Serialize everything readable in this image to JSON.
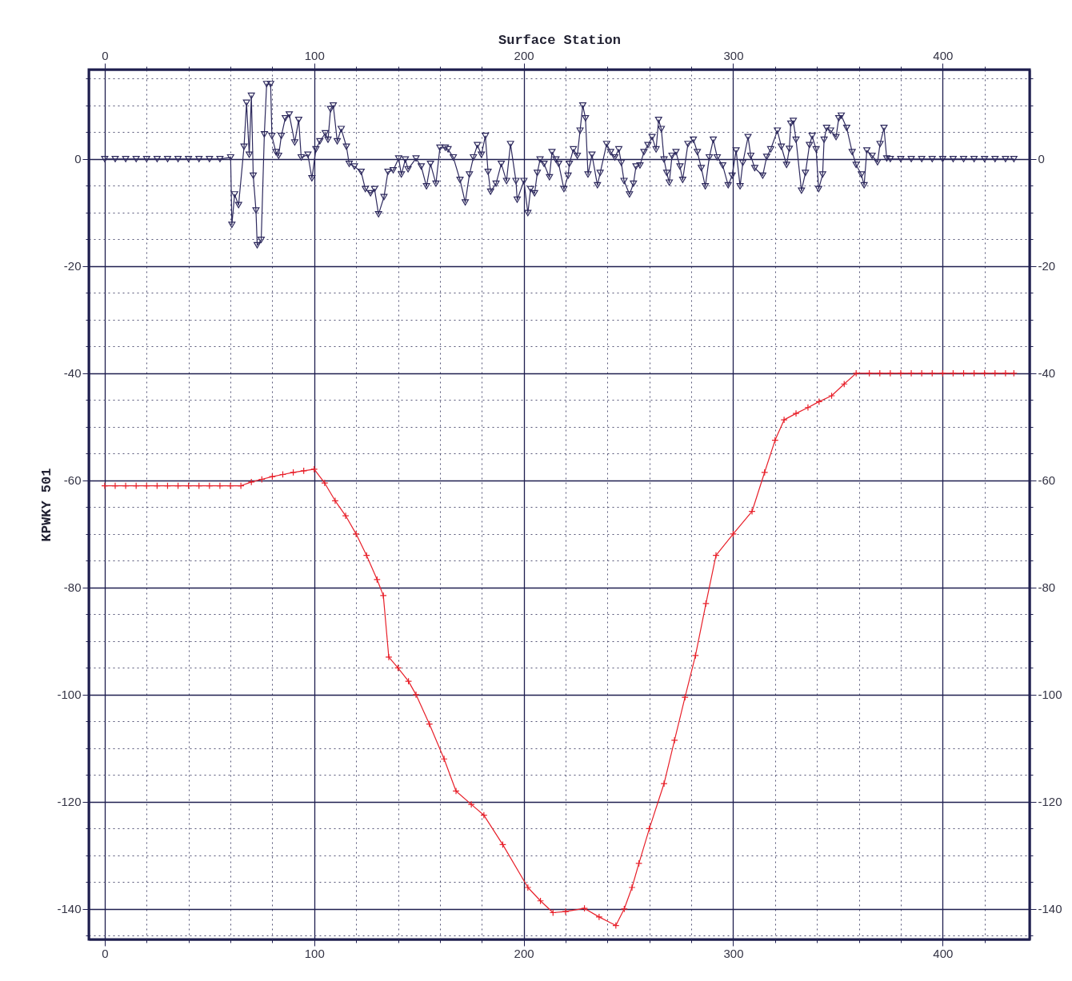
{
  "chart_data": {
    "type": "line",
    "x2label": "Surface Station",
    "ylabel": "KPWKY 501",
    "xlim": [
      -7.6,
      441.5
    ],
    "ylim": [
      -145.7,
      16.7
    ],
    "xticks": [
      0,
      {
        "value": 20,
        "label": null
      },
      {
        "value": 40,
        "label": null
      },
      {
        "value": 60,
        "label": null
      },
      {
        "value": 80,
        "label": null
      },
      100,
      {
        "value": 120,
        "label": null
      },
      {
        "value": 140,
        "label": null
      },
      {
        "value": 160,
        "label": null
      },
      {
        "value": 180,
        "label": null
      },
      200,
      {
        "value": 220,
        "label": null
      },
      {
        "value": 240,
        "label": null
      },
      {
        "value": 260,
        "label": null
      },
      {
        "value": 280,
        "label": null
      },
      300,
      {
        "value": 320,
        "label": null
      },
      {
        "value": 340,
        "label": null
      },
      {
        "value": 360,
        "label": null
      },
      {
        "value": 380,
        "label": null
      },
      400,
      {
        "value": 420,
        "label": null
      }
    ],
    "yticks": [
      {
        "value": 15,
        "label": null
      },
      {
        "value": 10,
        "label": null
      },
      {
        "value": 5,
        "label": null
      },
      0,
      {
        "value": -5,
        "label": null
      },
      {
        "value": -10,
        "label": null
      },
      {
        "value": -15,
        "label": null
      },
      -20,
      {
        "value": -25,
        "label": null
      },
      {
        "value": -30,
        "label": null
      },
      {
        "value": -35,
        "label": null
      },
      -40,
      {
        "value": -45,
        "label": null
      },
      {
        "value": -50,
        "label": null
      },
      {
        "value": -55,
        "label": null
      },
      -60,
      {
        "value": -65,
        "label": null
      },
      {
        "value": -70,
        "label": null
      },
      {
        "value": -75,
        "label": null
      },
      -80,
      {
        "value": -85,
        "label": null
      },
      {
        "value": -90,
        "label": null
      },
      {
        "value": -95,
        "label": null
      },
      -100,
      {
        "value": -105,
        "label": null
      },
      {
        "value": -110,
        "label": null
      },
      {
        "value": -115,
        "label": null
      },
      -120,
      {
        "value": -125,
        "label": null
      },
      {
        "value": -130,
        "label": null
      },
      {
        "value": -135,
        "label": null
      },
      -140,
      {
        "value": -145,
        "label": null
      }
    ],
    "x2lim": [
      -7.6,
      441.5
    ],
    "y2lim": [
      -145.7,
      16.7
    ],
    "x2ticks": [
      0,
      {
        "value": 20,
        "label": null
      },
      {
        "value": 40,
        "label": null
      },
      {
        "value": 60,
        "label": null
      },
      {
        "value": 80,
        "label": null
      },
      100,
      {
        "value": 120,
        "label": null
      },
      {
        "value": 140,
        "label": null
      },
      {
        "value": 160,
        "label": null
      },
      {
        "value": 180,
        "label": null
      },
      200,
      {
        "value": 220,
        "label": null
      },
      {
        "value": 240,
        "label": null
      },
      {
        "value": 260,
        "label": null
      },
      {
        "value": 280,
        "label": null
      },
      300,
      {
        "value": 320,
        "label": null
      },
      {
        "value": 340,
        "label": null
      },
      {
        "value": 360,
        "label": null
      },
      {
        "value": 380,
        "label": null
      },
      400,
      {
        "value": 420,
        "label": null
      }
    ],
    "y2ticks": [
      {
        "value": 15,
        "label": null
      },
      {
        "value": 10,
        "label": null
      },
      {
        "value": 5,
        "label": null
      },
      0,
      {
        "value": -5,
        "label": null
      },
      {
        "value": -10,
        "label": null
      },
      {
        "value": -15,
        "label": null
      },
      -20,
      {
        "value": -25,
        "label": null
      },
      {
        "value": -30,
        "label": null
      },
      {
        "value": -35,
        "label": null
      },
      -40,
      {
        "value": -45,
        "label": null
      },
      {
        "value": -50,
        "label": null
      },
      {
        "value": -55,
        "label": null
      },
      -60,
      {
        "value": -65,
        "label": null
      },
      {
        "value": -70,
        "label": null
      },
      {
        "value": -75,
        "label": null
      },
      -80,
      {
        "value": -85,
        "label": null
      },
      {
        "value": -90,
        "label": null
      },
      {
        "value": -95,
        "label": null
      },
      -100,
      {
        "value": -105,
        "label": null
      },
      {
        "value": -110,
        "label": null
      },
      {
        "value": -115,
        "label": null
      },
      -120,
      {
        "value": -125,
        "label": null
      },
      {
        "value": -130,
        "label": null
      },
      {
        "value": -135,
        "label": null
      },
      -140,
      {
        "value": -145,
        "label": null
      }
    ],
    "grid": true,
    "line_style": "solid",
    "series": [
      {
        "color": "#e8202a",
        "marker": "cross",
        "x": [
          0,
          5,
          10,
          15,
          20,
          25,
          30,
          35,
          40,
          45,
          50,
          55,
          60,
          65,
          70,
          75,
          80,
          85,
          90,
          95,
          100,
          105,
          110,
          115,
          120,
          125,
          130,
          133,
          135.6,
          140,
          145,
          148.6,
          155,
          162,
          167.7,
          175,
          181,
          190,
          202,
          208,
          214,
          220,
          229,
          236,
          244,
          248,
          251.7,
          255,
          260,
          267,
          272,
          277,
          282,
          287,
          291.8,
          300,
          309,
          315,
          320,
          324.3,
          330,
          335.7,
          341,
          347,
          353,
          358.7,
          365,
          370,
          375,
          380,
          385,
          390,
          395,
          400,
          405,
          410,
          415,
          420,
          425,
          430,
          434
        ],
        "values": [
          -61,
          -61,
          -61,
          -61,
          -61,
          -61,
          -61,
          -61,
          -61,
          -61,
          -61,
          -61,
          -61,
          -61,
          -60.3,
          -59.8,
          -59.3,
          -58.9,
          -58.5,
          -58.2,
          -57.9,
          -60.5,
          -63.8,
          -66.6,
          -70,
          -74,
          -78.5,
          -81.5,
          -93,
          -95,
          -97.5,
          -100,
          -105.5,
          -112,
          -118,
          -120.5,
          -122.5,
          -128,
          -136,
          -138.5,
          -140.7,
          -140.5,
          -139.9,
          -141.5,
          -143.1,
          -140,
          -136,
          -131.5,
          -125,
          -116.6,
          -108.5,
          -100.5,
          -92.7,
          -83,
          -74,
          -70,
          -65.8,
          -58.5,
          -52.5,
          -48.7,
          -47.5,
          -46.4,
          -45.3,
          -44.2,
          -42,
          -40,
          -40,
          -40,
          -40,
          -40,
          -40,
          -40,
          -40,
          -40,
          -40,
          -40,
          -40,
          -40,
          -40,
          -40,
          -40
        ]
      },
      {
        "color": "#2e2a5e",
        "marker": "triangle",
        "x": [
          0,
          5,
          10,
          15,
          20,
          25,
          30,
          35,
          40,
          45,
          50,
          55,
          60.1,
          60.7,
          62,
          63.9,
          66.5,
          67.7,
          69,
          70,
          70.9,
          72.2,
          72.8,
          74.7,
          76.2,
          77.3,
          79.2,
          79.8,
          81.7,
          83,
          84.3,
          86.2,
          88.1,
          90.7,
          92.6,
          93.8,
          97,
          98.9,
          100.8,
          102.7,
          105.3,
          106.6,
          107.8,
          109.1,
          111,
          112.9,
          115.4,
          116.7,
          119.2,
          122.4,
          124.4,
          126.9,
          128.8,
          130.7,
          133.3,
          135.2,
          137.7,
          140.3,
          141.6,
          143.5,
          144.8,
          148.6,
          151.1,
          153.6,
          155.5,
          158.1,
          160,
          162.6,
          163.9,
          166.4,
          169.6,
          172.1,
          174.1,
          176,
          177.9,
          179.8,
          181.7,
          183,
          184.2,
          186.8,
          189.3,
          191.8,
          193.7,
          196.3,
          196.9,
          200.1,
          202,
          203.3,
          205.2,
          206.5,
          207.8,
          209.7,
          212.3,
          213.5,
          215.4,
          216.7,
          219.2,
          221.2,
          221.8,
          223.7,
          225.6,
          226.9,
          228.2,
          229.5,
          230.7,
          232.6,
          235.2,
          236.5,
          239.6,
          241.5,
          243.5,
          245.4,
          246.6,
          247.9,
          250.5,
          252.4,
          253.6,
          255.5,
          257.4,
          259.3,
          261.3,
          263.2,
          264.4,
          265.7,
          267,
          268.3,
          269.5,
          270.8,
          272.7,
          274.6,
          275.9,
          278.4,
          281,
          282.9,
          284.8,
          286.7,
          288.6,
          290.5,
          292.4,
          295,
          297.6,
          299.5,
          301.4,
          303.3,
          304.6,
          307.1,
          308.4,
          310.3,
          314.1,
          316,
          317.9,
          321.1,
          323,
          325.5,
          326.8,
          327.5,
          328.7,
          330,
          332.6,
          334.5,
          336.4,
          337.7,
          339.6,
          340.8,
          342.7,
          343.4,
          344.6,
          346.5,
          349.1,
          350.4,
          351.6,
          354.2,
          356.8,
          358.7,
          361.2,
          362.5,
          363.8,
          366.3,
          368.9,
          370.1,
          372,
          373.3,
          375,
          380,
          385,
          390,
          395,
          400,
          405,
          410,
          415,
          420,
          425,
          430,
          434
        ],
        "values": [
          0,
          0,
          0,
          0,
          0,
          0,
          0,
          0,
          0,
          0,
          0,
          0,
          0.3,
          -12.3,
          -6.6,
          -8.6,
          2.3,
          10.5,
          0.8,
          11.8,
          -3.1,
          -9.6,
          -16.1,
          -15.1,
          4.6,
          14,
          14,
          4.3,
          1.3,
          0.6,
          4.3,
          7.6,
          8.3,
          3.1,
          7.3,
          0.3,
          0.8,
          -3.6,
          1.8,
          3.3,
          4.8,
          3.6,
          9.3,
          10,
          3.3,
          5.6,
          2.3,
          -0.9,
          -1.4,
          -2.4,
          -5.6,
          -6.4,
          -5.6,
          -10.3,
          -7.1,
          -2.4,
          -2.1,
          0.1,
          -2.9,
          -0.1,
          -1.9,
          0.1,
          -1.4,
          -5.1,
          -0.9,
          -4.6,
          2.1,
          2.1,
          1.8,
          0.3,
          -3.9,
          -8.1,
          -2.9,
          0.3,
          2.6,
          0.8,
          4.3,
          -2.4,
          -6.1,
          -4.6,
          -0.9,
          -4.1,
          2.8,
          -4.1,
          -7.6,
          -4.1,
          -10.1,
          -5.6,
          -6.4,
          -2.6,
          -0.1,
          -0.9,
          -3.4,
          1.3,
          -0.1,
          -0.9,
          -5.6,
          -3.1,
          -0.9,
          1.8,
          0.6,
          5.3,
          10,
          7.6,
          -2.9,
          0.8,
          -4.9,
          -2.6,
          2.8,
          1.3,
          0.3,
          1.8,
          -0.7,
          -4.1,
          -6.6,
          -4.6,
          -1.4,
          -1.2,
          1.3,
          2.6,
          4.1,
          1.8,
          7.3,
          5.6,
          -0.1,
          -2.6,
          -4.4,
          0.6,
          1.3,
          -1.4,
          -3.9,
          2.8,
          3.6,
          1.3,
          -1.7,
          -5.1,
          0.3,
          3.6,
          0.3,
          -1.2,
          -4.9,
          -3.1,
          1.6,
          -5.1,
          -0.7,
          4.1,
          0.6,
          -1.7,
          -3.1,
          0.4,
          1.8,
          5.3,
          2.3,
          -1.1,
          1.9,
          6.6,
          7.1,
          3.6,
          -5.9,
          -2.6,
          2.6,
          4.3,
          1.8,
          -5.6,
          -2.9,
          3.6,
          5.8,
          5.3,
          4.1,
          7.6,
          8.1,
          5.8,
          1.3,
          -1.1,
          -2.9,
          -4.9,
          1.6,
          0.6,
          -0.6,
          2.8,
          5.8,
          0.1,
          0,
          0,
          0,
          0,
          0,
          0,
          0,
          0,
          0,
          0,
          0,
          0,
          0
        ]
      }
    ]
  }
}
